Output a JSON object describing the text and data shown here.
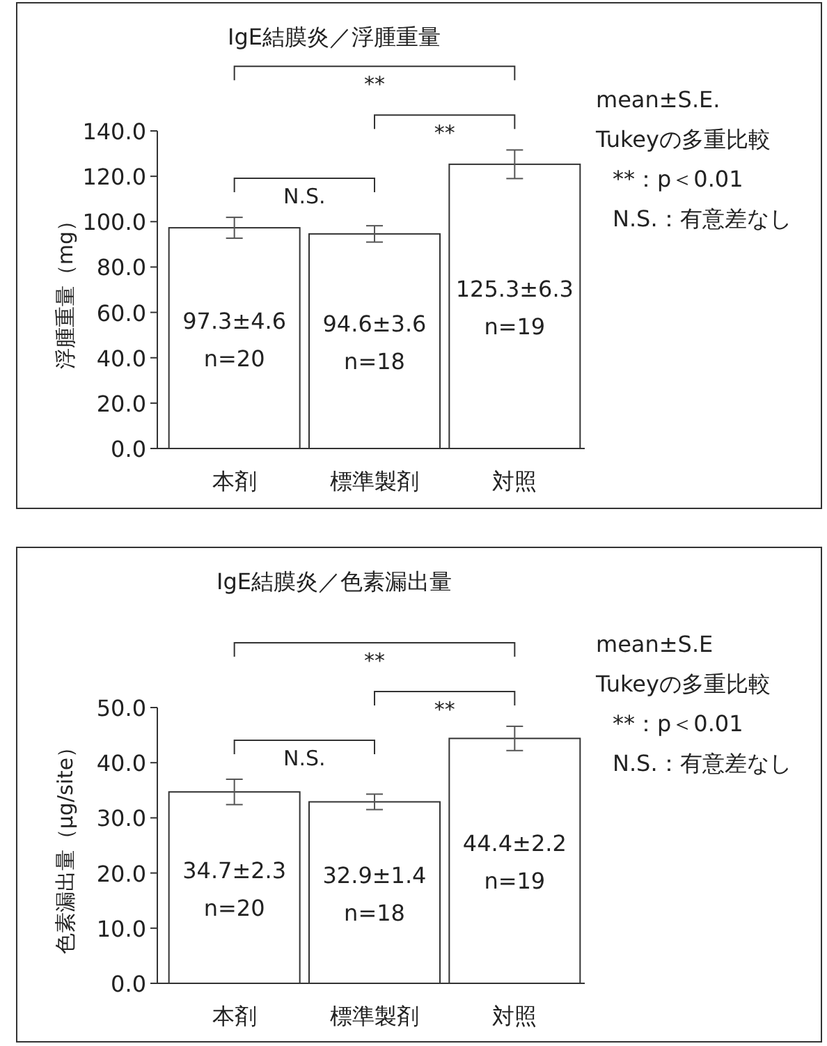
{
  "chart_data": [
    {
      "type": "bar",
      "title": "IgE結膜炎／浮腫重量",
      "ylabel": "浮腫重量（mg）",
      "categories": [
        "本剤",
        "標準製剤",
        "対照"
      ],
      "values": [
        97.3,
        94.6,
        125.3
      ],
      "errors": [
        4.6,
        3.6,
        6.3
      ],
      "color": "#ffffff",
      "value_labels": [
        "97.3±4.6\nn=20",
        "94.6±3.6\nn=18",
        "125.3±6.3\nn=19"
      ],
      "ylim": [
        0,
        140
      ],
      "yticks": [
        {
          "value": 0,
          "label": "0.0"
        },
        {
          "value": 20,
          "label": "20.0"
        },
        {
          "value": 40,
          "label": "40.0"
        },
        {
          "value": 60,
          "label": "60.0"
        },
        {
          "value": 80,
          "label": "80.0"
        },
        {
          "value": 100,
          "label": "100.0"
        },
        {
          "value": 120,
          "label": "120.0"
        },
        {
          "value": 140,
          "label": "140.0"
        }
      ],
      "annotations": [
        "**",
        "**",
        "N.S.",
        "mean±S.E.",
        "Tukeyの多重比較",
        "**：p＜0.01",
        "N.S.：有意差なし"
      ]
    },
    {
      "type": "bar",
      "title": "IgE結膜炎／色素漏出量",
      "ylabel": "色素漏出量（μg/site）",
      "categories": [
        "本剤",
        "標準製剤",
        "対照"
      ],
      "values": [
        34.7,
        32.9,
        44.4
      ],
      "errors": [
        2.3,
        1.4,
        2.2
      ],
      "color": "#ffffff",
      "value_labels": [
        "34.7±2.3\nn=20",
        "32.9±1.4\nn=18",
        "44.4±2.2\nn=19"
      ],
      "ylim": [
        0,
        50
      ],
      "yticks": [
        {
          "value": 0,
          "label": "0.0"
        },
        {
          "value": 10,
          "label": "10.0"
        },
        {
          "value": 20,
          "label": "20.0"
        },
        {
          "value": 30,
          "label": "30.0"
        },
        {
          "value": 40,
          "label": "40.0"
        },
        {
          "value": 50,
          "label": "50.0"
        }
      ],
      "annotations": [
        "**",
        "**",
        "N.S.",
        "mean±S.E",
        "Tukeyの多重比較",
        "**：p＜0.01",
        "N.S.：有意差なし"
      ]
    }
  ]
}
